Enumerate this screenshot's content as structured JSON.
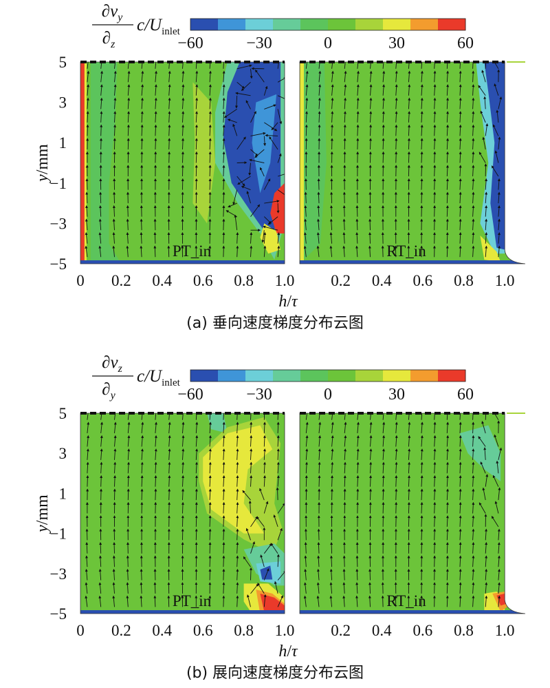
{
  "chart_data": [
    {
      "type": "heatmap",
      "panel": "a",
      "quantity": {
        "num_var": "v",
        "num_sub": "y",
        "den_var": "z",
        "factor": "c/U",
        "factor_sub": "inlet"
      },
      "colorbar": {
        "min": -60,
        "max": 60,
        "ticks": [
          "−60",
          "−30",
          "0",
          "30",
          "60"
        ]
      },
      "xlabel": {
        "var": "h",
        "sep": "/",
        "den": "τ"
      },
      "ylabel": {
        "var": "y",
        "unit": "/mm"
      },
      "ylim": [
        -5,
        5
      ],
      "yticks": [
        "5",
        "3",
        "1",
        "−1",
        "−3",
        "−5"
      ],
      "subplots": [
        {
          "label": "PT_in",
          "xlim": [
            0,
            1.0
          ],
          "xticks": [
            "0",
            "0.2",
            "0.4",
            "0.6",
            "0.8",
            "1.0"
          ]
        },
        {
          "label": "RT_in",
          "xlim": [
            0,
            1.1
          ],
          "xticks": [
            "0.2",
            "0.4",
            "0.6",
            "0.8",
            "1.0"
          ]
        }
      ],
      "caption": "(a) 垂向速度梯度分布云图"
    },
    {
      "type": "heatmap",
      "panel": "b",
      "quantity": {
        "num_var": "v",
        "num_sub": "z",
        "den_var": "y",
        "factor": "c/U",
        "factor_sub": "inlet"
      },
      "colorbar": {
        "min": -60,
        "max": 60,
        "ticks": [
          "−60",
          "−30",
          "0",
          "30",
          "60"
        ]
      },
      "xlabel": {
        "var": "h",
        "sep": "/",
        "den": "τ"
      },
      "ylabel": {
        "var": "y",
        "unit": "/mm"
      },
      "ylim": [
        -5,
        5
      ],
      "yticks": [
        "5",
        "3",
        "1",
        "−1",
        "−3",
        "−5"
      ],
      "subplots": [
        {
          "label": "PT_in",
          "xlim": [
            0,
            1.0
          ],
          "xticks": [
            "0",
            "0.2",
            "0.4",
            "0.6",
            "0.8",
            "1.0"
          ]
        },
        {
          "label": "RT_in",
          "xlim": [
            0,
            1.1
          ],
          "xticks": [
            "0.2",
            "0.4",
            "0.6",
            "0.8",
            "1.0"
          ]
        }
      ],
      "caption": "(b) 展向速度梯度分布云图"
    }
  ],
  "colors": {
    "levels": [
      "#2a4fb0",
      "#3f95d8",
      "#6ccfd8",
      "#66cc99",
      "#5cc45c",
      "#6cc43a",
      "#a8d43a",
      "#e6e83c",
      "#f39c2e",
      "#ea3a2a"
    ],
    "background": "#6cc43a",
    "arrow": "#111111"
  }
}
